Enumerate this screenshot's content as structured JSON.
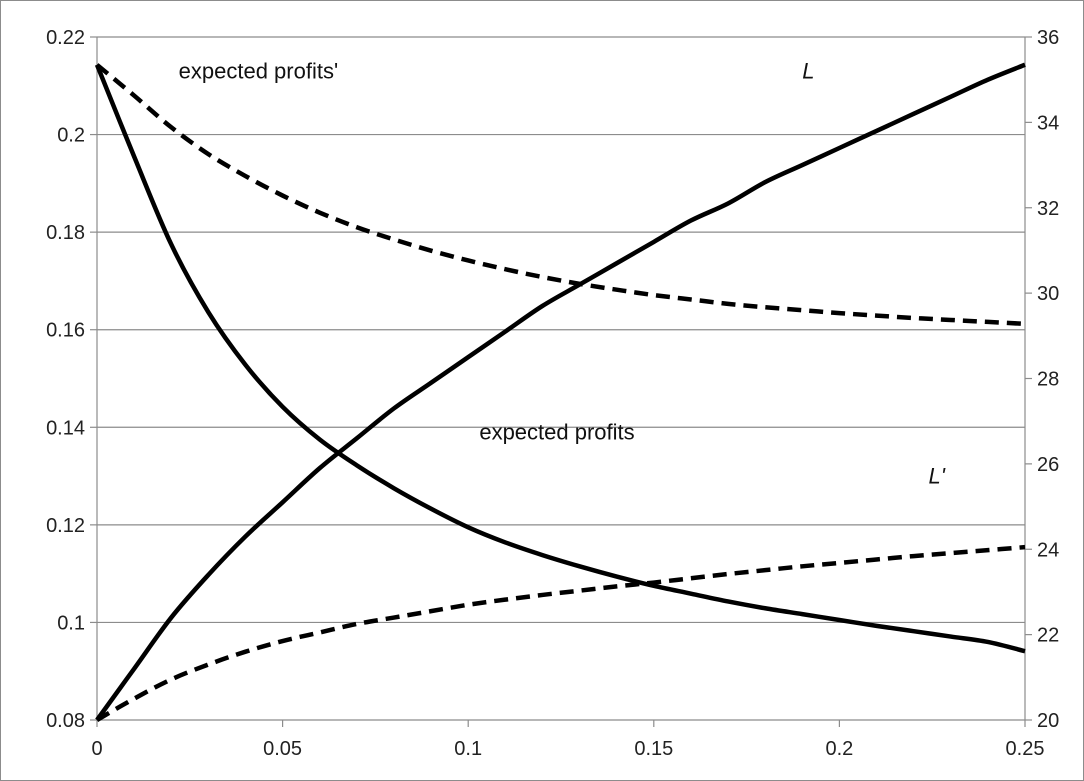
{
  "chart_data": {
    "type": "line",
    "grid": "horizontal",
    "x": {
      "range": [
        0,
        0.25
      ],
      "tick_values": [
        0,
        0.05,
        0.1,
        0.15,
        0.2,
        0.25
      ],
      "tick_labels": [
        "0",
        "0.05",
        "0.1",
        "0.15",
        "0.2",
        "0.25"
      ]
    },
    "y_left": {
      "range": [
        0.08,
        0.22
      ],
      "tick_values": [
        0.08,
        0.1,
        0.12,
        0.14,
        0.16,
        0.18,
        0.2,
        0.22
      ],
      "tick_labels": [
        "0.08",
        "0.1",
        "0.12",
        "0.14",
        "0.16",
        "0.18",
        "0.2",
        "0.22"
      ]
    },
    "y_right": {
      "range": [
        20,
        36
      ],
      "tick_values": [
        20,
        22,
        24,
        26,
        28,
        30,
        32,
        34,
        36
      ],
      "tick_labels": [
        "20",
        "22",
        "24",
        "26",
        "28",
        "30",
        "32",
        "34",
        "36"
      ]
    },
    "series": [
      {
        "name": "expected profits",
        "axis": "left",
        "style": "solid",
        "color": "#000000",
        "x": [
          0,
          0.01,
          0.02,
          0.03,
          0.04,
          0.05,
          0.06,
          0.07,
          0.08,
          0.09,
          0.1,
          0.11,
          0.12,
          0.13,
          0.14,
          0.15,
          0.16,
          0.17,
          0.18,
          0.19,
          0.2,
          0.21,
          0.22,
          0.23,
          0.24,
          0.25
        ],
        "y": [
          0.2143,
          0.1955,
          0.1775,
          0.1636,
          0.1528,
          0.1442,
          0.1375,
          0.1322,
          0.1275,
          0.1233,
          0.1195,
          0.1164,
          0.1138,
          0.1115,
          0.1094,
          0.1075,
          0.1059,
          0.1043,
          0.1029,
          0.1017,
          0.1005,
          0.0993,
          0.0982,
          0.0971,
          0.096,
          0.0941
        ]
      },
      {
        "name": "expected profits'",
        "axis": "left",
        "style": "dashed",
        "color": "#000000",
        "x": [
          0,
          0.01,
          0.02,
          0.03,
          0.04,
          0.05,
          0.06,
          0.07,
          0.08,
          0.09,
          0.1,
          0.11,
          0.12,
          0.13,
          0.14,
          0.15,
          0.16,
          0.17,
          0.18,
          0.19,
          0.2,
          0.21,
          0.22,
          0.23,
          0.24,
          0.25
        ],
        "y": [
          0.2143,
          0.208,
          0.2015,
          0.196,
          0.1915,
          0.1875,
          0.184,
          0.181,
          0.1785,
          0.1762,
          0.1742,
          0.1724,
          0.1708,
          0.1694,
          0.1682,
          0.1671,
          0.1662,
          0.1653,
          0.1646,
          0.164,
          0.1634,
          0.1629,
          0.1624,
          0.162,
          0.1616,
          0.1612
        ]
      },
      {
        "name": "L",
        "axis": "right",
        "style": "solid",
        "color": "#000000",
        "x": [
          0,
          0.01,
          0.02,
          0.03,
          0.04,
          0.05,
          0.06,
          0.07,
          0.08,
          0.09,
          0.1,
          0.11,
          0.12,
          0.13,
          0.14,
          0.15,
          0.16,
          0.17,
          0.18,
          0.19,
          0.2,
          0.21,
          0.22,
          0.23,
          0.24,
          0.25
        ],
        "y": [
          20.0,
          21.2,
          22.4,
          23.4,
          24.3,
          25.1,
          25.9,
          26.6,
          27.3,
          27.9,
          28.5,
          29.1,
          29.7,
          30.2,
          30.7,
          31.2,
          31.7,
          32.1,
          32.6,
          33.0,
          33.4,
          33.8,
          34.2,
          34.6,
          35.0,
          35.35
        ]
      },
      {
        "name": "L'",
        "axis": "right",
        "style": "dashed",
        "color": "#000000",
        "x": [
          0,
          0.01,
          0.02,
          0.03,
          0.04,
          0.05,
          0.06,
          0.07,
          0.08,
          0.09,
          0.1,
          0.11,
          0.12,
          0.13,
          0.14,
          0.15,
          0.16,
          0.17,
          0.18,
          0.19,
          0.2,
          0.21,
          0.22,
          0.23,
          0.24,
          0.25
        ],
        "y": [
          20.0,
          20.5,
          20.95,
          21.3,
          21.6,
          21.85,
          22.05,
          22.25,
          22.4,
          22.55,
          22.7,
          22.82,
          22.93,
          23.03,
          23.13,
          23.22,
          23.32,
          23.42,
          23.51,
          23.6,
          23.68,
          23.76,
          23.84,
          23.91,
          23.98,
          24.05
        ]
      }
    ],
    "annotations": [
      {
        "text": "expected profits'",
        "x": 0.022,
        "y_left": 0.2115,
        "italic": false
      },
      {
        "text": "L",
        "x": 0.19,
        "y_left": 0.2115,
        "italic": true
      },
      {
        "text": "expected profits",
        "x": 0.103,
        "y_left": 0.1375,
        "italic": false
      },
      {
        "text": "L'",
        "x": 0.224,
        "y_left": 0.1285,
        "italic": true
      }
    ]
  }
}
